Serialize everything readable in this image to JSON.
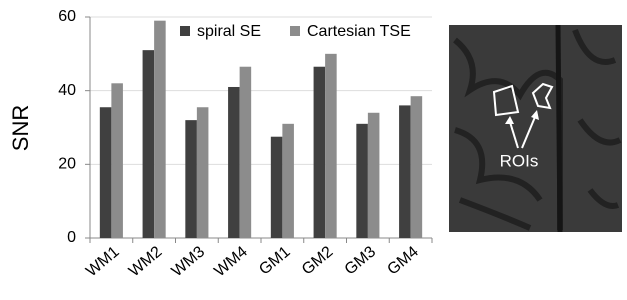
{
  "chart_data": {
    "type": "bar",
    "y_label": "SNR",
    "categories": [
      "WM1",
      "WM2",
      "WM3",
      "WM4",
      "GM1",
      "GM2",
      "GM3",
      "GM4"
    ],
    "series": [
      {
        "name": "spiral SE",
        "color": "#404040",
        "values": [
          35.5,
          51,
          32,
          41,
          27.5,
          46.5,
          31,
          36
        ]
      },
      {
        "name": "Cartesian TSE",
        "color": "#8c8c8c",
        "values": [
          42,
          59,
          35.5,
          46.5,
          31,
          50,
          34,
          38.5
        ]
      }
    ],
    "ylim": [
      0,
      60
    ],
    "yticks": [
      0,
      20,
      40,
      60
    ],
    "grid": true,
    "legend": "top-right"
  },
  "image": {
    "label": "ROIs"
  }
}
